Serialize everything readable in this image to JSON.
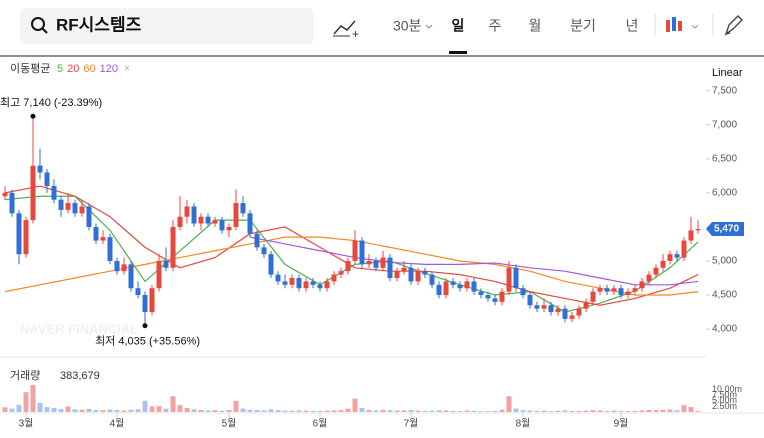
{
  "header": {
    "search": "RF시스템즈",
    "periods": [
      "30분",
      "일",
      "주",
      "월",
      "분기",
      "년"
    ],
    "selected": 1,
    "scale": "Linear"
  },
  "chart_data": {
    "type": "candlestick",
    "up_color": "#e8473e",
    "down_color": "#2f6fd6",
    "ma_title": "이동평균",
    "ma_x": [
      0,
      5,
      10,
      15,
      20,
      25,
      30,
      35,
      40,
      45,
      50,
      55,
      60,
      65,
      70,
      75,
      80,
      85,
      90,
      95,
      99
    ],
    "series": [
      {
        "name": "5",
        "color": "#4caf50",
        "values": [
          5900,
          5950,
          5950,
          5450,
          4700,
          5150,
          5600,
          5600,
          4950,
          4650,
          4950,
          5000,
          4820,
          4650,
          4500,
          4550,
          4250,
          4380,
          4560,
          4900,
          5280
        ]
      },
      {
        "name": "20",
        "color": "#e8473e",
        "values": [
          6000,
          6100,
          5950,
          5650,
          5200,
          4900,
          5050,
          5400,
          5500,
          5200,
          4900,
          4850,
          4850,
          4800,
          4700,
          4550,
          4450,
          4350,
          4450,
          4600,
          4800
        ]
      },
      {
        "name": "60",
        "color": "#f08a24",
        "values": [
          4550,
          4650,
          4750,
          4850,
          4950,
          5050,
          5150,
          5250,
          5350,
          5350,
          5300,
          5200,
          5100,
          5000,
          4950,
          4850,
          4700,
          4600,
          4500,
          4500,
          4550
        ]
      },
      {
        "name": "120",
        "color": "#a25ad6",
        "values": [
          null,
          null,
          null,
          null,
          null,
          null,
          null,
          5350,
          5250,
          5150,
          5050,
          4980,
          4950,
          4950,
          4970,
          4900,
          4850,
          4750,
          4650,
          4650,
          4700
        ]
      }
    ],
    "candles": [
      [
        5950,
        6100,
        5900,
        6000
      ],
      [
        6000,
        6050,
        5650,
        5700
      ],
      [
        5700,
        5750,
        4950,
        5100
      ],
      [
        5100,
        5650,
        5050,
        5600
      ],
      [
        5600,
        7140,
        5550,
        6400
      ],
      [
        6400,
        6650,
        6200,
        6300
      ],
      [
        6300,
        6350,
        6000,
        6100
      ],
      [
        6100,
        6200,
        5850,
        5900
      ],
      [
        5900,
        5950,
        5650,
        5750
      ],
      [
        5750,
        6000,
        5700,
        5850
      ],
      [
        5850,
        5900,
        5650,
        5700
      ],
      [
        5700,
        5900,
        5650,
        5800
      ],
      [
        5800,
        5850,
        5450,
        5500
      ],
      [
        5500,
        5550,
        5250,
        5300
      ],
      [
        5300,
        5450,
        5250,
        5350
      ],
      [
        5350,
        5400,
        4950,
        5000
      ],
      [
        5000,
        5050,
        4800,
        4850
      ],
      [
        4850,
        5050,
        4800,
        4950
      ],
      [
        4950,
        5000,
        4550,
        4600
      ],
      [
        4600,
        4700,
        4450,
        4500
      ],
      [
        4500,
        4550,
        4035,
        4250
      ],
      [
        4250,
        4650,
        4200,
        4600
      ],
      [
        4600,
        5100,
        4550,
        5000
      ],
      [
        5000,
        5200,
        4850,
        4900
      ],
      [
        4900,
        5600,
        4850,
        5500
      ],
      [
        5500,
        5950,
        5450,
        5650
      ],
      [
        5650,
        5900,
        5550,
        5800
      ],
      [
        5800,
        5850,
        5500,
        5550
      ],
      [
        5550,
        5700,
        5450,
        5650
      ],
      [
        5650,
        5700,
        5500,
        5550
      ],
      [
        5550,
        5650,
        5500,
        5600
      ],
      [
        5600,
        5650,
        5400,
        5450
      ],
      [
        5450,
        5550,
        5350,
        5500
      ],
      [
        5500,
        6050,
        5450,
        5850
      ],
      [
        5850,
        5950,
        5650,
        5700
      ],
      [
        5700,
        5750,
        5350,
        5400
      ],
      [
        5400,
        5450,
        5150,
        5200
      ],
      [
        5200,
        5250,
        5050,
        5100
      ],
      [
        5100,
        5150,
        4750,
        4800
      ],
      [
        4800,
        4850,
        4650,
        4700
      ],
      [
        4700,
        4800,
        4600,
        4650
      ],
      [
        4650,
        4800,
        4600,
        4750
      ],
      [
        4750,
        4800,
        4550,
        4600
      ],
      [
        4600,
        4750,
        4550,
        4700
      ],
      [
        4700,
        4750,
        4600,
        4650
      ],
      [
        4650,
        4700,
        4550,
        4600
      ],
      [
        4600,
        4750,
        4550,
        4700
      ],
      [
        4700,
        4850,
        4650,
        4800
      ],
      [
        4800,
        4900,
        4750,
        4850
      ],
      [
        4850,
        5050,
        4800,
        5000
      ],
      [
        5000,
        5450,
        4950,
        5300
      ],
      [
        5300,
        5350,
        4900,
        4950
      ],
      [
        4950,
        5100,
        4900,
        5000
      ],
      [
        5000,
        5050,
        4850,
        4900
      ],
      [
        4900,
        5150,
        4850,
        5050
      ],
      [
        5050,
        5100,
        4700,
        4750
      ],
      [
        4750,
        4900,
        4700,
        4850
      ],
      [
        4850,
        5000,
        4800,
        4900
      ],
      [
        4900,
        4950,
        4650,
        4700
      ],
      [
        4700,
        4900,
        4650,
        4850
      ],
      [
        4850,
        4900,
        4750,
        4800
      ],
      [
        4800,
        4850,
        4600,
        4650
      ],
      [
        4650,
        4700,
        4450,
        4500
      ],
      [
        4500,
        4750,
        4450,
        4700
      ],
      [
        4700,
        4750,
        4600,
        4650
      ],
      [
        4650,
        4700,
        4550,
        4600
      ],
      [
        4600,
        4750,
        4550,
        4700
      ],
      [
        4700,
        4750,
        4500,
        4550
      ],
      [
        4550,
        4600,
        4450,
        4500
      ],
      [
        4500,
        4550,
        4400,
        4450
      ],
      [
        4450,
        4500,
        4350,
        4400
      ],
      [
        4400,
        4600,
        4350,
        4550
      ],
      [
        4550,
        5000,
        4500,
        4900
      ],
      [
        4900,
        4950,
        4550,
        4600
      ],
      [
        4600,
        4650,
        4450,
        4500
      ],
      [
        4500,
        4550,
        4300,
        4350
      ],
      [
        4350,
        4400,
        4250,
        4300
      ],
      [
        4300,
        4450,
        4250,
        4350
      ],
      [
        4350,
        4400,
        4200,
        4250
      ],
      [
        4250,
        4350,
        4200,
        4300
      ],
      [
        4300,
        4350,
        4100,
        4150
      ],
      [
        4150,
        4250,
        4100,
        4200
      ],
      [
        4200,
        4350,
        4150,
        4300
      ],
      [
        4300,
        4450,
        4250,
        4400
      ],
      [
        4400,
        4600,
        4350,
        4550
      ],
      [
        4550,
        4650,
        4500,
        4600
      ],
      [
        4600,
        4650,
        4500,
        4550
      ],
      [
        4550,
        4650,
        4500,
        4600
      ],
      [
        4600,
        4650,
        4450,
        4500
      ],
      [
        4500,
        4600,
        4450,
        4550
      ],
      [
        4550,
        4650,
        4500,
        4600
      ],
      [
        4600,
        4750,
        4550,
        4700
      ],
      [
        4700,
        4850,
        4650,
        4800
      ],
      [
        4800,
        4950,
        4750,
        4900
      ],
      [
        4900,
        5100,
        4850,
        5000
      ],
      [
        5000,
        5150,
        4950,
        5100
      ],
      [
        5100,
        5150,
        5000,
        5050
      ],
      [
        5050,
        5350,
        5000,
        5300
      ],
      [
        5300,
        5650,
        5250,
        5450
      ],
      [
        5450,
        5600,
        5400,
        5470
      ]
    ],
    "ylim": [
      3590,
      8010
    ],
    "yticks": [
      {
        "value": 7500,
        "label": "7,500"
      },
      {
        "value": 7000,
        "label": "7,000"
      },
      {
        "value": 6500,
        "label": "6,500"
      },
      {
        "value": 6000,
        "label": "6,000"
      },
      {
        "value": 5500,
        "label": "5,500"
      },
      {
        "value": 5000,
        "label": "5,000"
      },
      {
        "value": 4500,
        "label": "4,500"
      },
      {
        "value": 4000,
        "label": "4,000"
      }
    ],
    "xticks": [
      {
        "value": 3,
        "label": "3월"
      },
      {
        "value": 16,
        "label": "4월"
      },
      {
        "value": 32,
        "label": "5월"
      },
      {
        "value": 45,
        "label": "6월"
      },
      {
        "value": 58,
        "label": "7월"
      },
      {
        "value": 74,
        "label": "8월"
      },
      {
        "value": 88,
        "label": "9월"
      }
    ],
    "last_price": {
      "value": 5470,
      "label": "5,470"
    },
    "high_annotation": {
      "index": 4,
      "text": "최고 7,140 (-23.39%)"
    },
    "low_annotation": {
      "index": 20,
      "text": "최저 4,035 (+35.56%)"
    },
    "watermark": "NAVER FINANCIAL",
    "volume_title": "거래량",
    "volume_last_label": "383,679",
    "volume": [
      2100000,
      1500000,
      3200000,
      8800000,
      12000000,
      4000000,
      2200000,
      1800000,
      1300000,
      2500000,
      1200000,
      1000000,
      1400000,
      900000,
      800000,
      1100000,
      900000,
      700000,
      1000000,
      1200000,
      5000000,
      2500000,
      2600000,
      1500000,
      7000000,
      3000000,
      1800000,
      1200000,
      900000,
      700000,
      800000,
      600000,
      900000,
      5000000,
      1500000,
      1000000,
      900000,
      700000,
      1200000,
      800000,
      600000,
      500000,
      700000,
      600000,
      500000,
      500000,
      600000,
      700000,
      800000,
      1500000,
      6000000,
      1800000,
      900000,
      700000,
      1000000,
      800000,
      600000,
      700000,
      900000,
      600000,
      500000,
      600000,
      800000,
      700000,
      500000,
      400000,
      600000,
      500000,
      400000,
      400000,
      500000,
      1000000,
      7000000,
      1500000,
      800000,
      700000,
      500000,
      600000,
      400000,
      500000,
      700000,
      400000,
      500000,
      600000,
      800000,
      700000,
      500000,
      600000,
      500000,
      400000,
      500000,
      700000,
      900000,
      800000,
      1000000,
      1100000,
      800000,
      3000000,
      2200000,
      383679
    ],
    "vlim": [
      0,
      12000000
    ],
    "vticks": [
      {
        "value": 10000000,
        "label": "10.00m"
      },
      {
        "value": 7500000,
        "label": "7.50m"
      },
      {
        "value": 5000000,
        "label": "5.00m"
      },
      {
        "value": 2500000,
        "label": "2.50m"
      }
    ]
  }
}
